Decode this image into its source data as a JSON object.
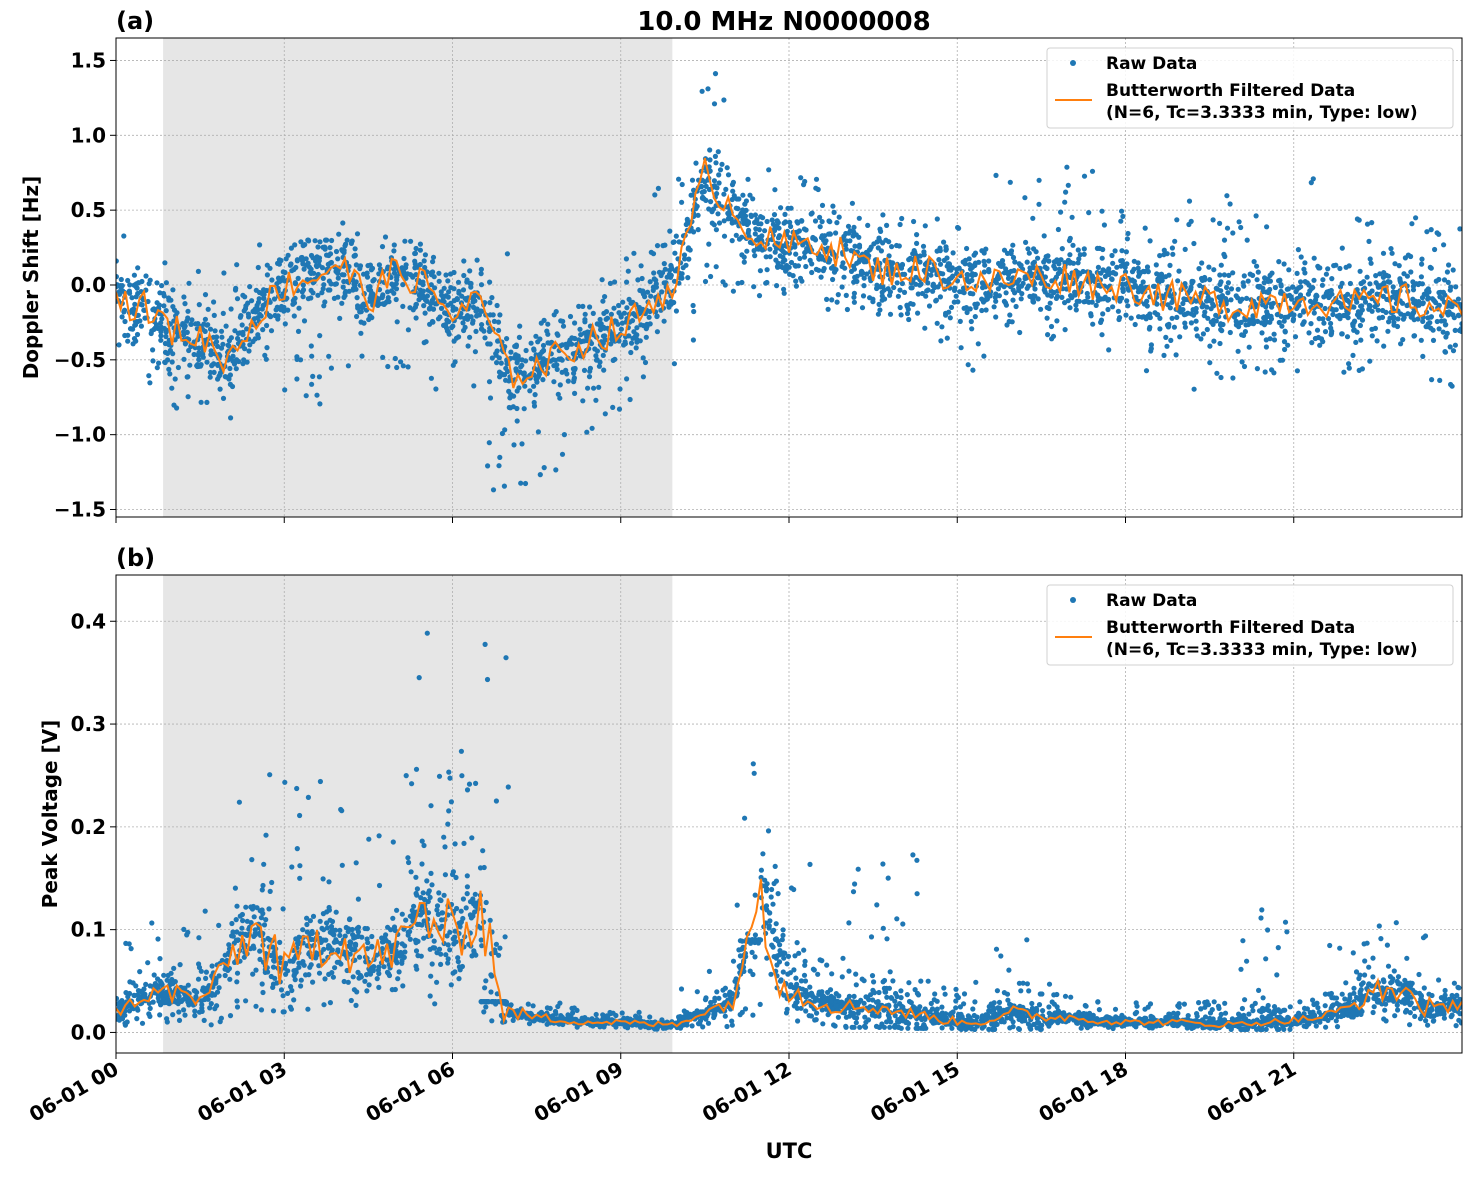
{
  "title": "10.0 MHz N0000008",
  "xlabel": "UTC",
  "x_tick_labels": [
    "06-01 00",
    "06-01 03",
    "06-01 06",
    "06-01 09",
    "06-01 12",
    "06-01 15",
    "06-01 18",
    "06-01 21"
  ],
  "x_tick_hours": [
    0,
    3,
    6,
    9,
    12,
    15,
    18,
    21
  ],
  "xlim_hours": [
    0,
    24
  ],
  "shaded_region_hours": [
    0.84,
    9.92
  ],
  "colors": {
    "raw": "#1f77b4",
    "filtered": "#ff7f0e",
    "shade": "#e6e6e6",
    "grid": "#b0b0b0"
  },
  "chart_data": [
    {
      "panel_label": "(a)",
      "type": "scatter+line",
      "ylabel": "Doppler Shift [Hz]",
      "ylim": [
        -1.55,
        1.65
      ],
      "y_ticks": [
        -1.5,
        -1.0,
        -0.5,
        0.0,
        0.5,
        1.0,
        1.5
      ],
      "y_tick_labels": [
        "−1.5",
        "−1.0",
        "−0.5",
        "0.0",
        "0.5",
        "1.0",
        "1.5"
      ],
      "grid": true,
      "legend": {
        "placement": "top-right",
        "entries": [
          "Raw Data",
          "Butterworth Filtered Data",
          "(N=6, Tc=3.3333 min, Type: low)"
        ]
      },
      "x_hours": [
        0,
        0.5,
        1,
        1.5,
        2,
        2.5,
        3,
        3.5,
        4,
        4.5,
        5,
        5.5,
        6,
        6.5,
        7,
        7.5,
        8,
        8.5,
        9,
        9.5,
        10,
        10.5,
        11,
        11.5,
        12,
        12.5,
        13,
        13.5,
        14,
        14.5,
        15,
        15.5,
        16,
        16.5,
        17,
        17.5,
        18,
        18.5,
        19,
        19.5,
        20,
        20.5,
        21,
        21.5,
        22,
        22.5,
        23,
        23.5,
        24
      ],
      "filtered": [
        -0.1,
        -0.15,
        -0.3,
        -0.35,
        -0.5,
        -0.2,
        0.0,
        0.05,
        0.15,
        -0.1,
        0.1,
        0.0,
        -0.2,
        -0.1,
        -0.6,
        -0.55,
        -0.45,
        -0.35,
        -0.3,
        -0.15,
        0.05,
        0.75,
        0.5,
        0.3,
        0.25,
        0.3,
        0.2,
        0.1,
        0.1,
        0.1,
        0.05,
        0.0,
        0.05,
        0.05,
        0.05,
        0.0,
        0.0,
        -0.05,
        -0.1,
        -0.1,
        -0.15,
        -0.1,
        -0.1,
        -0.1,
        -0.15,
        -0.1,
        -0.1,
        -0.15,
        -0.2
      ],
      "raw_min": [
        -0.5,
        -0.5,
        -0.7,
        -0.9,
        -1.0,
        -0.5,
        -0.5,
        -0.8,
        -0.5,
        -0.6,
        -0.4,
        -0.6,
        -0.7,
        -0.5,
        -1.4,
        -1.3,
        -1.0,
        -0.9,
        -0.8,
        -0.6,
        -0.4,
        0.1,
        0.0,
        -0.1,
        -0.1,
        -0.1,
        -0.2,
        -0.2,
        -0.2,
        -0.3,
        -0.4,
        -0.6,
        -0.5,
        -0.4,
        -0.3,
        -0.4,
        -0.5,
        -0.6,
        -0.6,
        -0.8,
        -0.7,
        -0.6,
        -0.6,
        -0.6,
        -0.6,
        -0.6,
        -0.5,
        -0.7,
        -0.5
      ],
      "raw_max": [
        0.45,
        0.15,
        0.15,
        0.1,
        0.0,
        0.2,
        0.3,
        0.3,
        0.45,
        0.3,
        0.55,
        0.3,
        0.2,
        0.25,
        -0.2,
        -0.1,
        -0.05,
        0.05,
        0.1,
        0.4,
        0.7,
        1.5,
        0.9,
        0.6,
        0.8,
        0.8,
        0.6,
        0.5,
        0.5,
        0.5,
        0.5,
        0.4,
        0.8,
        0.4,
        0.8,
        0.5,
        0.5,
        0.5,
        0.5,
        0.65,
        0.5,
        0.5,
        0.8,
        0.4,
        0.45,
        0.4,
        0.4,
        0.5,
        0.3
      ]
    },
    {
      "panel_label": "(b)",
      "type": "scatter+line",
      "ylabel": "Peak Voltage [V]",
      "ylim": [
        -0.02,
        0.445
      ],
      "y_ticks": [
        0.0,
        0.1,
        0.2,
        0.3,
        0.4
      ],
      "y_tick_labels": [
        "0.0",
        "0.1",
        "0.2",
        "0.3",
        "0.4"
      ],
      "grid": true,
      "legend": {
        "placement": "top-right",
        "entries": [
          "Raw Data",
          "Butterworth Filtered Data",
          "(N=6, Tc=3.3333 min, Type: low)"
        ]
      },
      "x_hours": [
        0,
        0.5,
        1,
        1.5,
        2,
        2.5,
        3,
        3.5,
        4,
        4.5,
        5,
        5.5,
        6,
        6.5,
        7,
        7.5,
        8,
        8.5,
        9,
        9.5,
        10,
        10.5,
        11,
        11.5,
        12,
        12.5,
        13,
        13.5,
        14,
        14.5,
        15,
        15.5,
        16,
        16.5,
        17,
        17.5,
        18,
        18.5,
        19,
        19.5,
        20,
        20.5,
        21,
        21.5,
        22,
        22.5,
        23,
        23.5,
        24
      ],
      "filtered": [
        0.02,
        0.035,
        0.04,
        0.03,
        0.07,
        0.1,
        0.06,
        0.09,
        0.09,
        0.07,
        0.08,
        0.12,
        0.09,
        0.12,
        0.02,
        0.015,
        0.012,
        0.01,
        0.01,
        0.008,
        0.008,
        0.02,
        0.03,
        0.14,
        0.04,
        0.03,
        0.025,
        0.025,
        0.02,
        0.015,
        0.01,
        0.01,
        0.02,
        0.015,
        0.015,
        0.012,
        0.01,
        0.01,
        0.01,
        0.008,
        0.008,
        0.01,
        0.012,
        0.015,
        0.025,
        0.04,
        0.04,
        0.02,
        0.03
      ],
      "raw_min": [
        0.005,
        0.005,
        0.005,
        0.005,
        0.01,
        0.02,
        0.02,
        0.02,
        0.02,
        0.02,
        0.02,
        0.02,
        0.02,
        0.02,
        0.01,
        0.008,
        0.005,
        0.004,
        0.003,
        0.003,
        0.003,
        0.005,
        0.01,
        0.02,
        0.01,
        0.008,
        0.005,
        0.005,
        0.005,
        0.004,
        0.003,
        0.003,
        0.003,
        0.003,
        0.003,
        0.003,
        0.003,
        0.003,
        0.003,
        0.003,
        0.003,
        0.003,
        0.003,
        0.003,
        0.005,
        0.01,
        0.01,
        0.005,
        0.005
      ],
      "raw_max": [
        0.1,
        0.1,
        0.11,
        0.07,
        0.15,
        0.29,
        0.2,
        0.26,
        0.2,
        0.22,
        0.2,
        0.425,
        0.25,
        0.38,
        0.03,
        0.03,
        0.025,
        0.02,
        0.02,
        0.015,
        0.02,
        0.05,
        0.09,
        0.335,
        0.17,
        0.08,
        0.06,
        0.185,
        0.19,
        0.05,
        0.04,
        0.07,
        0.105,
        0.05,
        0.04,
        0.035,
        0.03,
        0.03,
        0.03,
        0.03,
        0.035,
        0.12,
        0.03,
        0.04,
        0.09,
        0.11,
        0.1,
        0.1,
        0.06
      ]
    }
  ]
}
